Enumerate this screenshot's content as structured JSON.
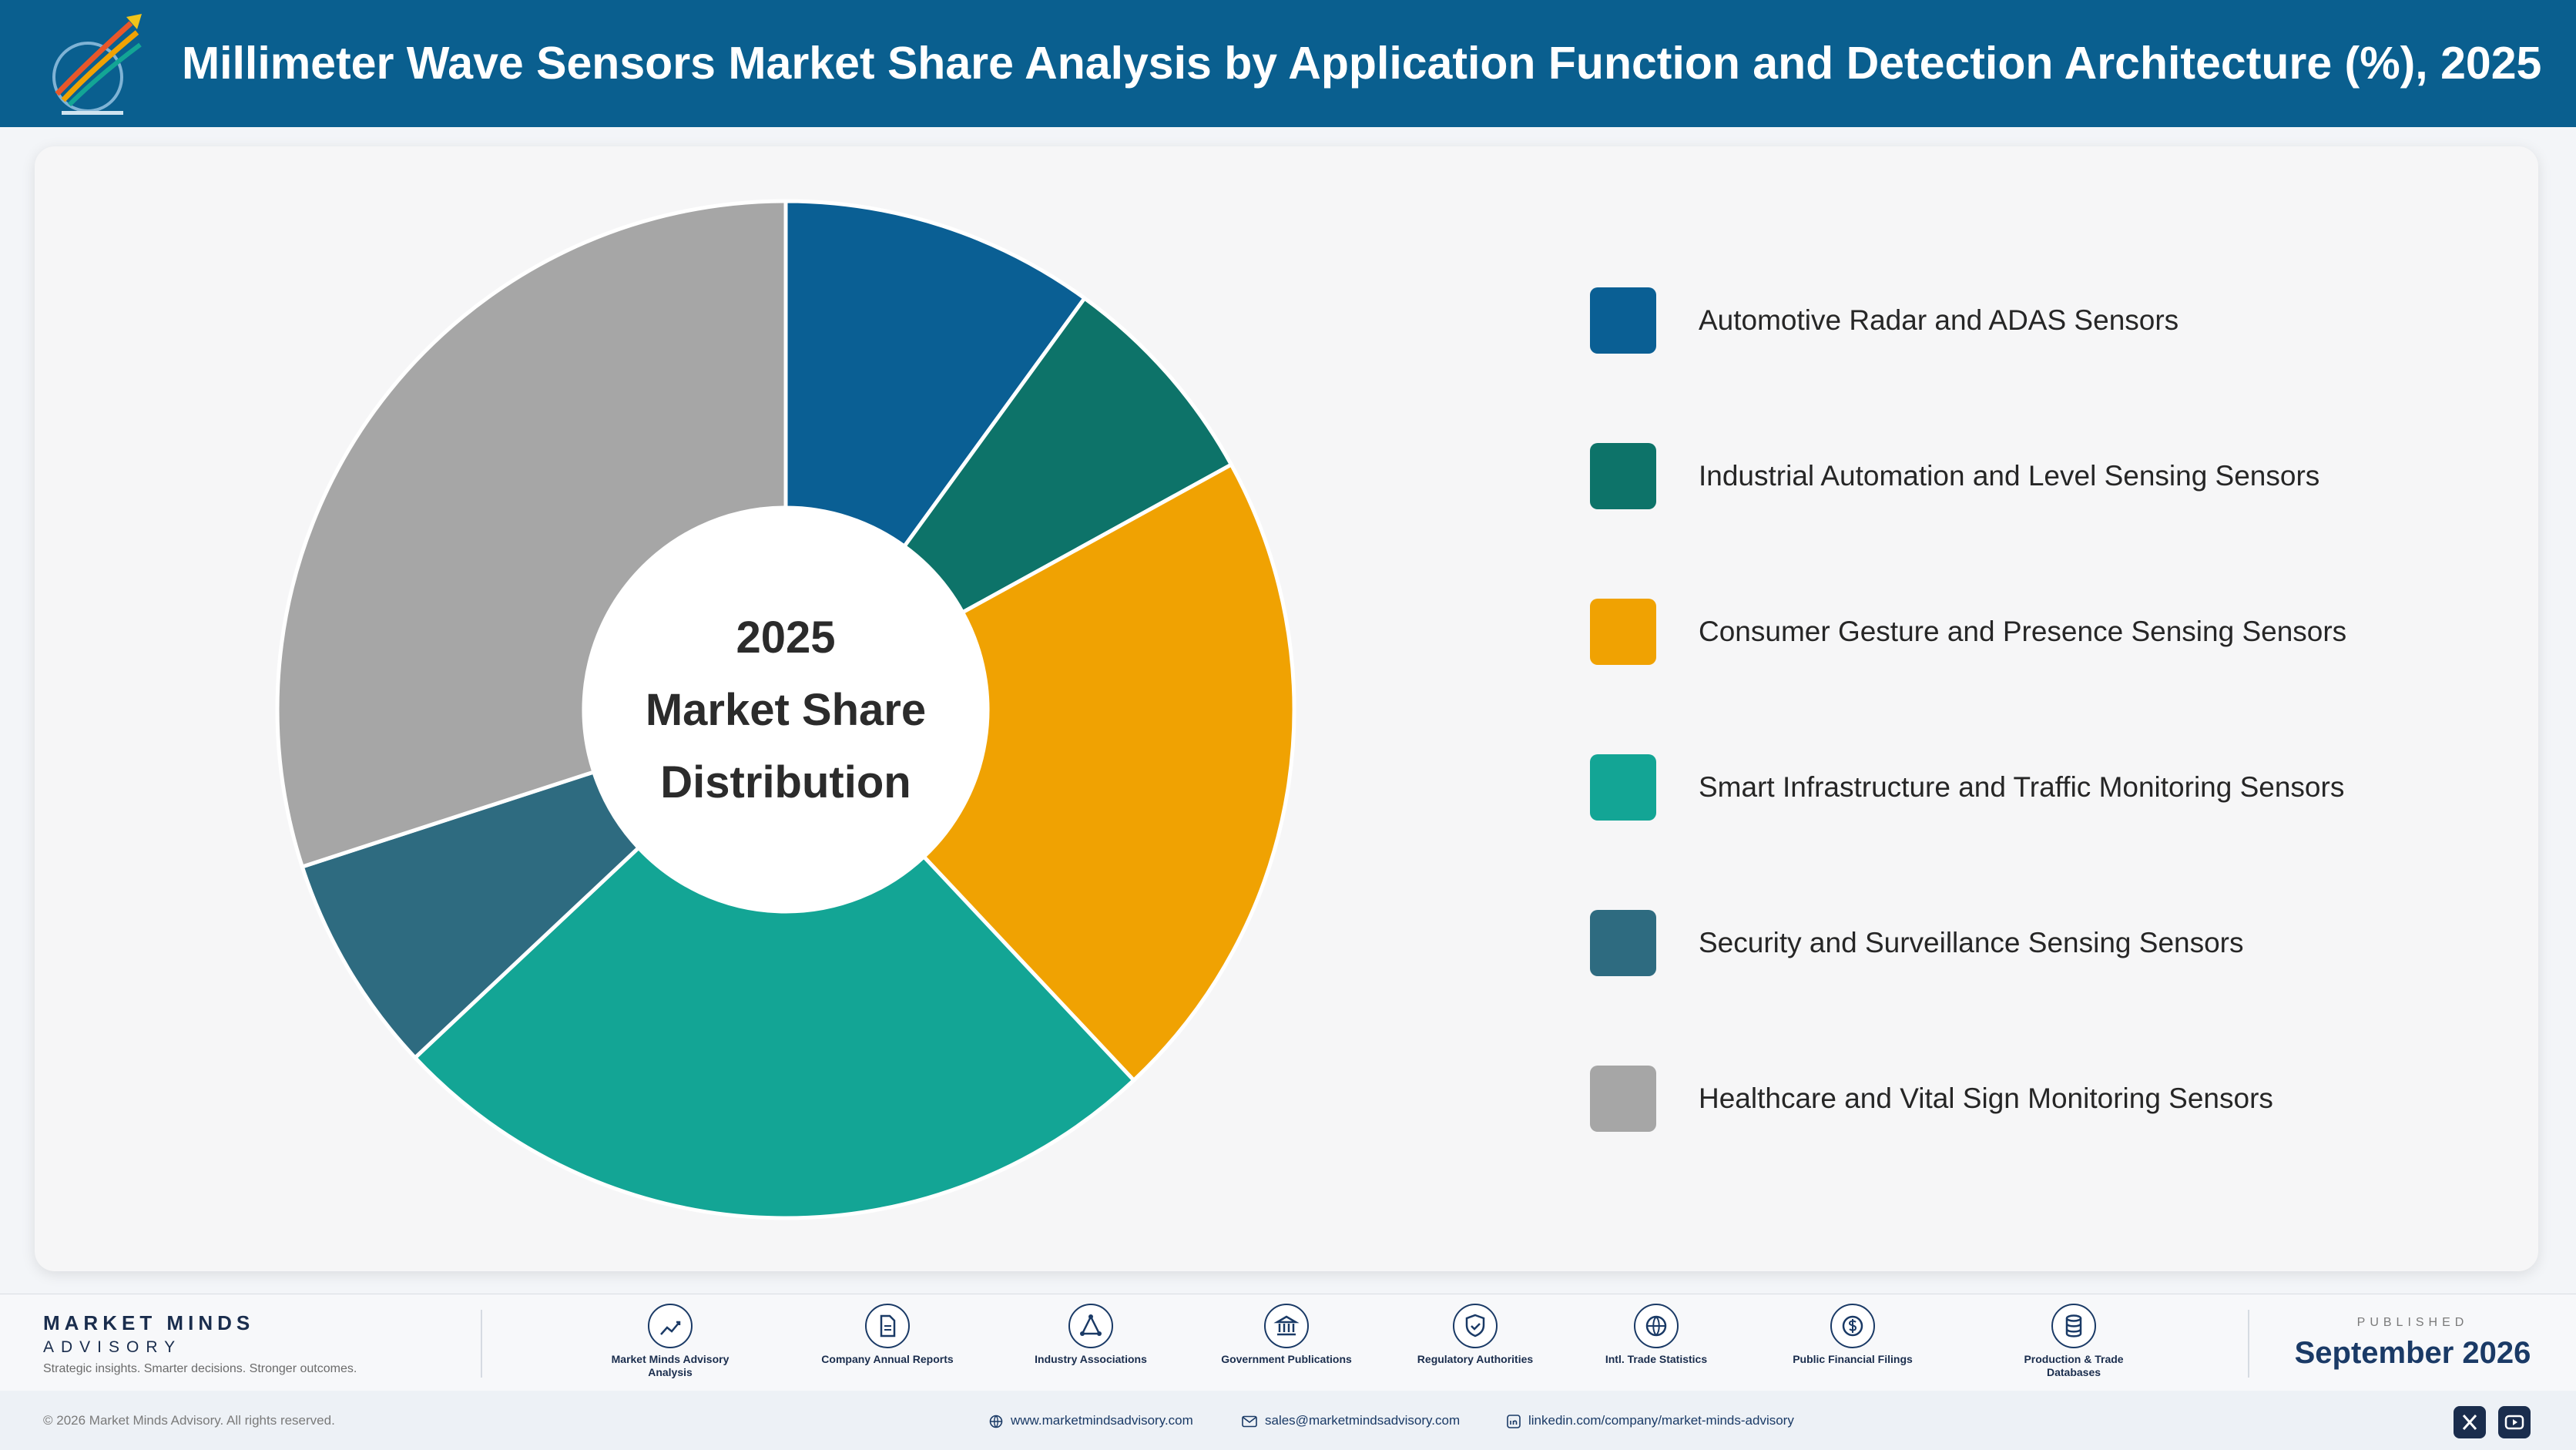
{
  "header": {
    "title": "Millimeter Wave Sensors Market Share Analysis by Application Function and Detection Architecture (%), 2025"
  },
  "chart_data": {
    "type": "pie",
    "title": "Millimeter Wave Sensors Market Share Analysis by Application Function and Detection Architecture (%), 2025",
    "center_label": [
      "2025",
      "Market Share",
      "Distribution"
    ],
    "donut": true,
    "legend_position": "right",
    "categories": [
      "Automotive Radar and ADAS Sensors",
      "Industrial Automation and Level Sensing Sensors",
      "Consumer Gesture and Presence Sensing Sensors",
      "Smart Infrastructure and Traffic Monitoring Sensors",
      "Security and Surveillance Sensing Sensors",
      "Healthcare and Vital Sign Monitoring Sensors"
    ],
    "values": [
      10,
      7,
      21,
      25,
      7,
      30
    ],
    "colors": [
      "#0a5f94",
      "#0d7369",
      "#f0a202",
      "#13a595",
      "#2e6b80",
      "#a6a6a6"
    ]
  },
  "footer": {
    "brand_name": "MARKET MINDS",
    "brand_sub": "ADVISORY",
    "tagline": "Strategic insights. Smarter decisions. Stronger outcomes.",
    "sources": [
      {
        "label": "Market Minds Advisory Analysis",
        "icon": "trend-chart-icon"
      },
      {
        "label": "Company Annual Reports",
        "icon": "document-icon"
      },
      {
        "label": "Industry Associations",
        "icon": "network-icon"
      },
      {
        "label": "Government Publications",
        "icon": "government-building-icon"
      },
      {
        "label": "Regulatory Authorities",
        "icon": "shield-check-icon"
      },
      {
        "label": "Intl. Trade Statistics",
        "icon": "globe-icon"
      },
      {
        "label": "Public Financial Filings",
        "icon": "dollar-coin-icon"
      },
      {
        "label": "Production & Trade Databases",
        "icon": "database-icon"
      }
    ],
    "published_label": "PUBLISHED",
    "published_date": "September 2026"
  },
  "bottom_bar": {
    "copyright": "© 2026 Market Minds Advisory. All rights reserved.",
    "website": "www.marketmindsadvisory.com",
    "email": "sales@marketmindsadvisory.com",
    "linkedin": "linkedin.com/company/market-minds-advisory"
  }
}
